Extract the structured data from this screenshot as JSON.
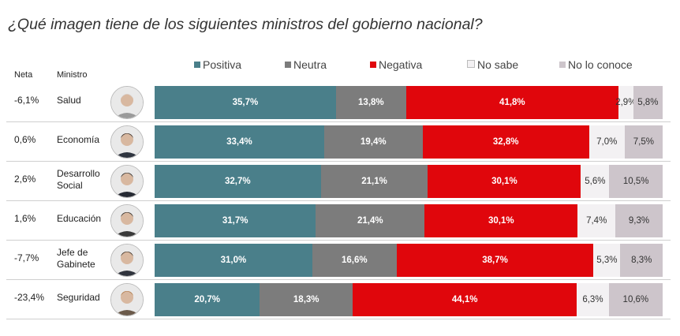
{
  "title": "¿Qué imagen tiene de los siguientes ministros del gobierno nacional?",
  "headers": {
    "neta": "Neta",
    "ministro": "Ministro"
  },
  "colors": {
    "Positiva": "#4a7f8a",
    "Neutra": "#7c7c7c",
    "Negativa": "#e0060c",
    "No sabe": "#f3f1f3",
    "No lo conoce": "#cdc5cb"
  },
  "chart_data": {
    "type": "bar",
    "orientation": "horizontal-stacked-100",
    "title": "¿Qué imagen tiene de los siguientes ministros del gobierno nacional?",
    "legend_position": "top",
    "categories": [
      "Salud",
      "Economía",
      "Desarrollo Social",
      "Educación",
      "Jefe de Gabinete",
      "Seguridad"
    ],
    "neta": [
      "-6,1%",
      "0,6%",
      "2,6%",
      "1,6%",
      "-7,7%",
      "-23,4%"
    ],
    "series": [
      {
        "name": "Positiva",
        "values": [
          35.7,
          33.4,
          32.7,
          31.7,
          31.0,
          20.7
        ],
        "labels": [
          "35,7%",
          "33,4%",
          "32,7%",
          "31,7%",
          "31,0%",
          "20,7%"
        ]
      },
      {
        "name": "Neutra",
        "values": [
          13.8,
          19.4,
          21.1,
          21.4,
          16.6,
          18.3
        ],
        "labels": [
          "13,8%",
          "19,4%",
          "21,1%",
          "21,4%",
          "16,6%",
          "18,3%"
        ]
      },
      {
        "name": "Negativa",
        "values": [
          41.8,
          32.8,
          30.1,
          30.1,
          38.7,
          44.1
        ],
        "labels": [
          "41,8%",
          "32,8%",
          "30,1%",
          "30,1%",
          "38,7%",
          "44,1%"
        ]
      },
      {
        "name": "No sabe",
        "values": [
          2.9,
          7.0,
          5.6,
          7.4,
          5.3,
          6.3
        ],
        "labels": [
          "2,9%",
          "7,0%",
          "5,6%",
          "7,4%",
          "5,3%",
          "6,3%"
        ]
      },
      {
        "name": "No lo conoce",
        "values": [
          5.8,
          7.5,
          10.5,
          9.3,
          8.3,
          10.6
        ],
        "labels": [
          "5,8%",
          "7,5%",
          "10,5%",
          "9,3%",
          "8,3%",
          "10,6%"
        ]
      }
    ],
    "xlim": [
      0,
      100
    ]
  },
  "rows": [
    {
      "neta": "-6,1%",
      "ministro": [
        "Salud"
      ]
    },
    {
      "neta": "0,6%",
      "ministro": [
        "Economía"
      ]
    },
    {
      "neta": "2,6%",
      "ministro": [
        "Desarrollo",
        "Social"
      ]
    },
    {
      "neta": "1,6%",
      "ministro": [
        "Educación"
      ]
    },
    {
      "neta": "-7,7%",
      "ministro": [
        "Jefe de",
        "Gabinete"
      ]
    },
    {
      "neta": "-23,4%",
      "ministro": [
        "Seguridad"
      ]
    }
  ]
}
